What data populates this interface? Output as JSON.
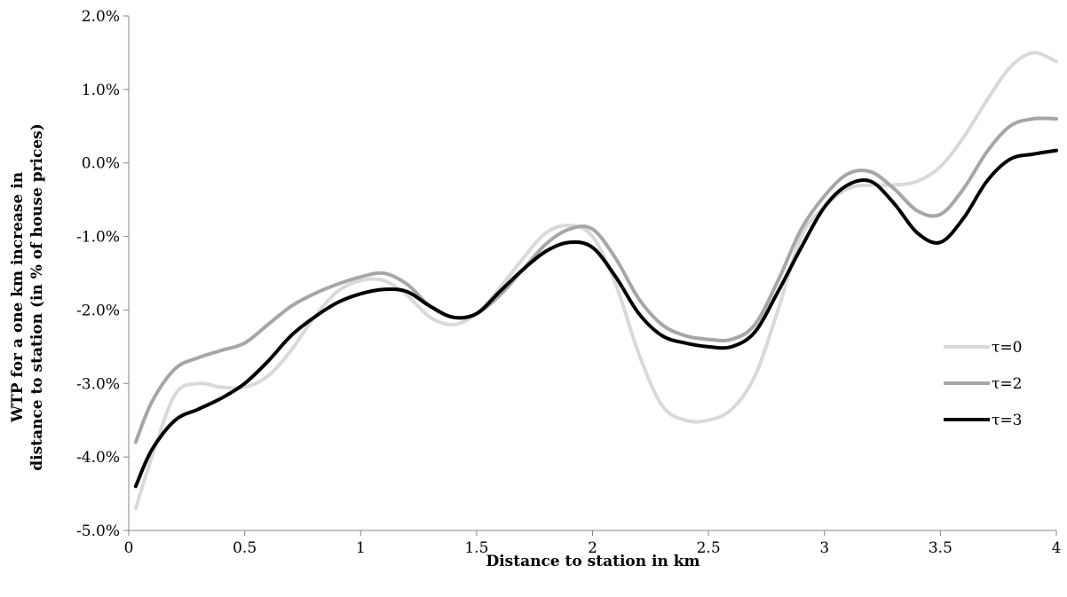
{
  "chart_data": {
    "type": "line",
    "title": "",
    "xlabel": "Distance to station in km",
    "ylabel_lines": [
      "WTP for a one km increase in",
      "distance to station (in % of house prices)"
    ],
    "xlim": [
      0,
      4
    ],
    "ylim": [
      -5.0,
      2.0
    ],
    "x_ticks": [
      0,
      0.5,
      1,
      1.5,
      2,
      2.5,
      3,
      3.5,
      4
    ],
    "x_tick_labels": [
      "0",
      "0.5",
      "1",
      "1.5",
      "2",
      "2.5",
      "3",
      "3.5",
      "4"
    ],
    "y_ticks": [
      2.0,
      1.0,
      0.0,
      -1.0,
      -2.0,
      -3.0,
      -4.0,
      -5.0
    ],
    "y_tick_labels": [
      "2.0%",
      "1.0%",
      "0.0%",
      "-1.0%",
      "-2.0%",
      "-3.0%",
      "-4.0%",
      "-5.0%"
    ],
    "grid": false,
    "legend_position": "right",
    "series": [
      {
        "name": "τ=0",
        "color": "#d9d9d9",
        "x": [
          0.03,
          0.1,
          0.2,
          0.3,
          0.4,
          0.5,
          0.6,
          0.7,
          0.8,
          0.9,
          1.0,
          1.1,
          1.2,
          1.3,
          1.4,
          1.5,
          1.6,
          1.7,
          1.8,
          1.9,
          2.0,
          2.1,
          2.2,
          2.3,
          2.4,
          2.5,
          2.6,
          2.7,
          2.8,
          2.9,
          3.0,
          3.1,
          3.2,
          3.3,
          3.4,
          3.5,
          3.6,
          3.7,
          3.8,
          3.9,
          4.0
        ],
        "y": [
          -4.7,
          -4.0,
          -3.15,
          -3.0,
          -3.05,
          -3.05,
          -2.9,
          -2.55,
          -2.1,
          -1.75,
          -1.6,
          -1.6,
          -1.8,
          -2.1,
          -2.2,
          -2.05,
          -1.7,
          -1.3,
          -0.95,
          -0.85,
          -1.0,
          -1.65,
          -2.6,
          -3.3,
          -3.5,
          -3.5,
          -3.35,
          -2.9,
          -2.0,
          -1.0,
          -0.6,
          -0.35,
          -0.3,
          -0.3,
          -0.25,
          -0.05,
          0.35,
          0.85,
          1.3,
          1.5,
          1.38
        ]
      },
      {
        "name": "τ=2",
        "color": "#a6a6a6",
        "x": [
          0.03,
          0.1,
          0.2,
          0.3,
          0.4,
          0.5,
          0.6,
          0.7,
          0.8,
          0.9,
          1.0,
          1.1,
          1.2,
          1.3,
          1.4,
          1.5,
          1.6,
          1.7,
          1.8,
          1.9,
          2.0,
          2.1,
          2.2,
          2.3,
          2.4,
          2.5,
          2.6,
          2.7,
          2.8,
          2.9,
          3.0,
          3.1,
          3.2,
          3.3,
          3.4,
          3.5,
          3.6,
          3.7,
          3.8,
          3.9,
          4.0
        ],
        "y": [
          -3.8,
          -3.25,
          -2.8,
          -2.65,
          -2.55,
          -2.45,
          -2.2,
          -1.95,
          -1.78,
          -1.65,
          -1.55,
          -1.5,
          -1.65,
          -1.95,
          -2.1,
          -2.05,
          -1.8,
          -1.45,
          -1.1,
          -0.9,
          -0.9,
          -1.3,
          -1.85,
          -2.2,
          -2.35,
          -2.4,
          -2.4,
          -2.2,
          -1.6,
          -0.9,
          -0.45,
          -0.15,
          -0.12,
          -0.35,
          -0.65,
          -0.7,
          -0.35,
          0.15,
          0.5,
          0.6,
          0.6
        ]
      },
      {
        "name": "τ=3",
        "color": "#000000",
        "x": [
          0.03,
          0.1,
          0.2,
          0.3,
          0.4,
          0.5,
          0.6,
          0.7,
          0.8,
          0.9,
          1.0,
          1.1,
          1.2,
          1.3,
          1.4,
          1.5,
          1.6,
          1.7,
          1.8,
          1.9,
          2.0,
          2.1,
          2.2,
          2.3,
          2.4,
          2.5,
          2.6,
          2.7,
          2.8,
          2.9,
          3.0,
          3.1,
          3.2,
          3.3,
          3.4,
          3.5,
          3.6,
          3.7,
          3.8,
          3.9,
          4.0
        ],
        "y": [
          -4.4,
          -3.9,
          -3.5,
          -3.35,
          -3.2,
          -3.0,
          -2.7,
          -2.35,
          -2.1,
          -1.9,
          -1.78,
          -1.72,
          -1.75,
          -1.95,
          -2.1,
          -2.05,
          -1.75,
          -1.45,
          -1.2,
          -1.08,
          -1.15,
          -1.55,
          -2.05,
          -2.35,
          -2.45,
          -2.5,
          -2.5,
          -2.3,
          -1.75,
          -1.15,
          -0.6,
          -0.3,
          -0.25,
          -0.55,
          -0.95,
          -1.08,
          -0.75,
          -0.25,
          0.05,
          0.12,
          0.17
        ]
      }
    ]
  }
}
